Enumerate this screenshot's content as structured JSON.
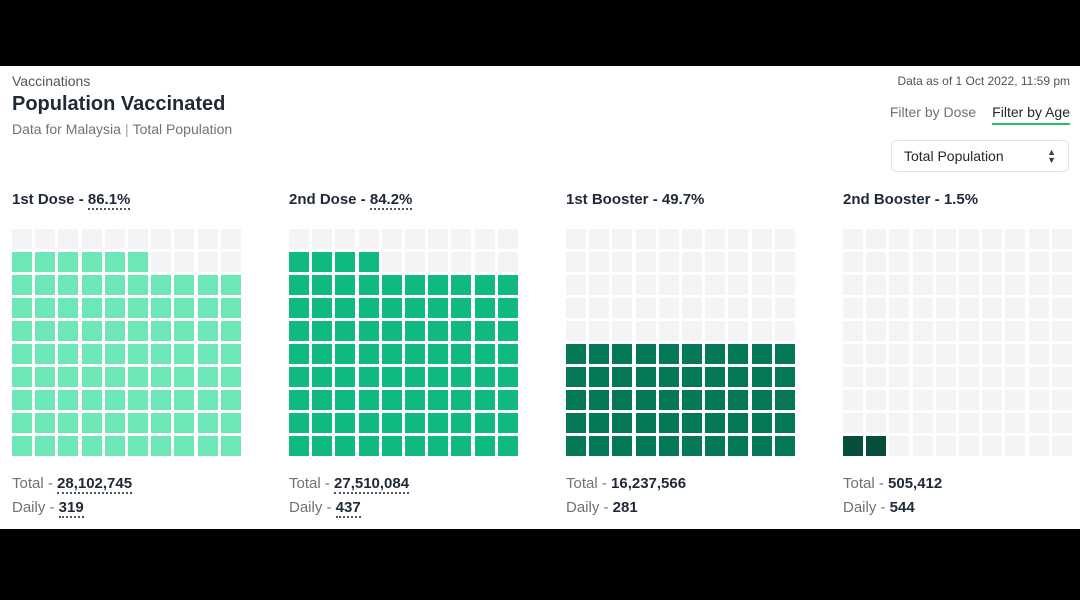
{
  "header": {
    "eyebrow": "Vaccinations",
    "title": "Population Vaccinated",
    "subtitle_region": "Data for Malaysia",
    "subtitle_separator": "|",
    "subtitle_scope": "Total Population",
    "as_of": "Data as of 1 Oct 2022, 11:59 pm"
  },
  "filters": {
    "dose_label": "Filter by Dose",
    "age_label": "Filter by Age",
    "active": "age"
  },
  "select": {
    "value": "Total Population",
    "arrow_up": "▲",
    "arrow_down": "▼"
  },
  "stat_labels": {
    "total": "Total - ",
    "daily": "Daily - "
  },
  "cards": [
    {
      "label": "1st Dose - ",
      "percent": "86.1%",
      "percent_value": 86.1,
      "total": "28,102,745",
      "daily": "319",
      "color": "#6ee7b7",
      "dotted": true
    },
    {
      "label": "2nd Dose - ",
      "percent": "84.2%",
      "percent_value": 84.2,
      "total": "27,510,084",
      "daily": "437",
      "color": "#10b981",
      "dotted": true
    },
    {
      "label": "1st Booster - ",
      "percent": "49.7%",
      "percent_value": 49.7,
      "total": "16,237,566",
      "daily": "281",
      "color": "#047857",
      "dotted": false
    },
    {
      "label": "2nd Booster - ",
      "percent": "1.5%",
      "percent_value": 1.5,
      "total": "505,412",
      "daily": "544",
      "color": "#064e3b",
      "dotted": false
    }
  ]
}
